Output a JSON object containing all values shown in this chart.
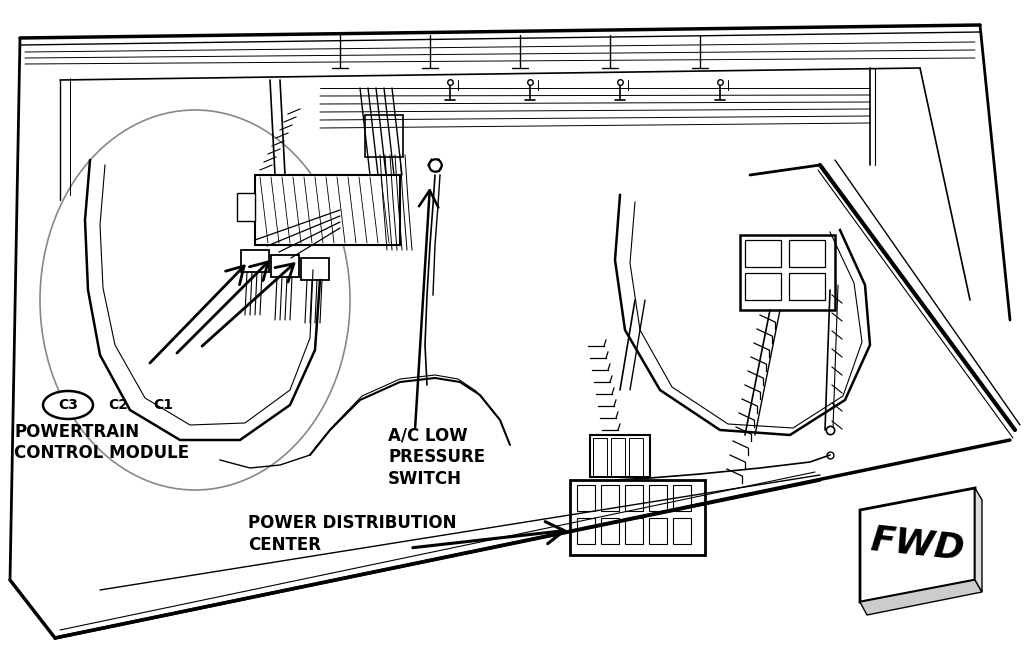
{
  "bg_color": "#ffffff",
  "line_color": "#000000",
  "figsize": [
    10.24,
    6.7
  ],
  "dpi": 100,
  "labels": {
    "c3": "C3",
    "c2": "C2",
    "c1": "C1",
    "powertrain_line1": "POWERTRAIN",
    "powertrain_line2": "CONTROL MODULE",
    "ac_line1": "A/C LOW",
    "ac_line2": "PRESSURE",
    "ac_line3": "SWITCH",
    "pdc_line1": "POWER DISTRIBUTION",
    "pdc_line2": "CENTER",
    "fwd": "FWD"
  }
}
